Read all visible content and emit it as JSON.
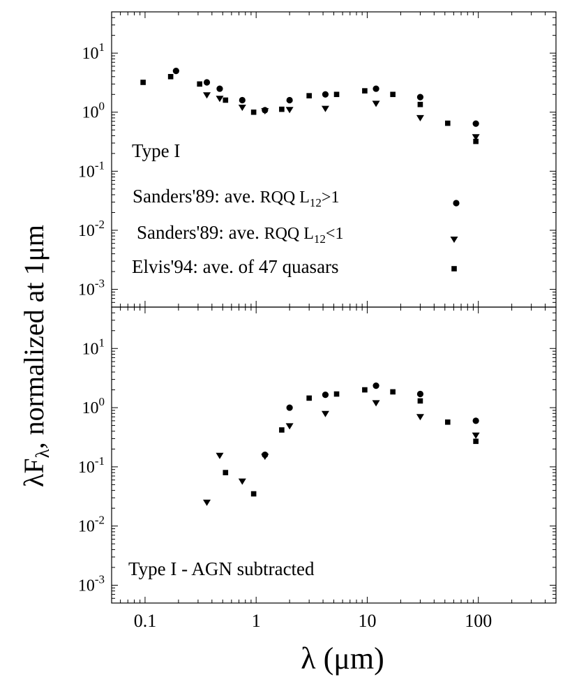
{
  "chart_data": {
    "type": "scatter",
    "xscale": "log",
    "yscale": "log",
    "xlim": [
      0.05,
      500
    ],
    "ylim": [
      0.0005,
      50
    ],
    "xlabel": {
      "main": "λ",
      "unit": "(μm)"
    },
    "ylabel": {
      "main": "λF",
      "sub": "λ",
      "rest": ", normalized at 1μm"
    },
    "xticks": [
      {
        "value": 0.1,
        "label": "0.1"
      },
      {
        "value": 1,
        "label": "1"
      },
      {
        "value": 10,
        "label": "10"
      },
      {
        "value": 100,
        "label": "100"
      }
    ],
    "yticks": [
      {
        "value": 10,
        "base": "10",
        "exp": "1"
      },
      {
        "value": 1,
        "base": "10",
        "exp": "0"
      },
      {
        "value": 0.1,
        "base": "10",
        "exp": "-1"
      },
      {
        "value": 0.01,
        "base": "10",
        "exp": "-2"
      },
      {
        "value": 0.001,
        "base": "10",
        "exp": "-3"
      }
    ],
    "legend": [
      {
        "marker": "circle",
        "prefix": "Sanders'89: ave. ",
        "mid": "RQQ L",
        "sub": "12",
        "suffix": ">1"
      },
      {
        "marker": "triangle",
        "prefix": "Sanders'89: ave. ",
        "mid": "RQQ L",
        "sub": "12",
        "suffix": "<1"
      },
      {
        "marker": "square",
        "prefix": "Elvis'94: ave. of 47 quasars",
        "mid": "",
        "sub": "",
        "suffix": ""
      }
    ],
    "panels": [
      {
        "label": "Type I",
        "series": [
          {
            "name": "Sanders'89 RQQ L12>1",
            "marker": "circle",
            "x": [
              0.19,
              0.36,
              0.47,
              0.75,
              1.2,
              2.0,
              4.2,
              12,
              30,
              95
            ],
            "y": [
              5.0,
              3.2,
              2.5,
              1.6,
              1.08,
              1.6,
              2.0,
              2.5,
              1.8,
              0.64
            ]
          },
          {
            "name": "Sanders'89 RQQ L12<1",
            "marker": "triangle",
            "x": [
              0.36,
              0.47,
              0.75,
              1.2,
              2.0,
              4.2,
              12,
              30,
              95
            ],
            "y": [
              1.95,
              1.7,
              1.2,
              1.05,
              1.1,
              1.15,
              1.4,
              0.8,
              0.38
            ]
          },
          {
            "name": "Elvis'94 ave. of 47 quasars",
            "marker": "square",
            "x": [
              0.096,
              0.17,
              0.31,
              0.53,
              0.95,
              1.7,
              3.0,
              5.3,
              9.5,
              17,
              30,
              53,
              95
            ],
            "y": [
              3.2,
              4.0,
              3.0,
              1.6,
              1.0,
              1.12,
              1.9,
              2.0,
              2.3,
              2.0,
              1.35,
              0.65,
              0.32
            ]
          }
        ]
      },
      {
        "label": "Type I - AGN subtracted",
        "series": [
          {
            "name": "Sanders'89 RQQ L12>1",
            "marker": "circle",
            "x": [
              1.2,
              2.0,
              4.2,
              12,
              30,
              95
            ],
            "y": [
              0.16,
              1.0,
              1.65,
              2.35,
              1.7,
              0.6
            ]
          },
          {
            "name": "Sanders'89 RQQ L12<1",
            "marker": "triangle",
            "x": [
              0.36,
              0.47,
              0.75,
              1.2,
              2.0,
              4.2,
              12,
              30,
              95
            ],
            "y": [
              0.025,
              0.155,
              0.057,
              0.15,
              0.49,
              0.79,
              1.2,
              0.7,
              0.34
            ]
          },
          {
            "name": "Elvis'94 ave. of 47 quasars",
            "marker": "square",
            "x": [
              0.53,
              0.95,
              1.7,
              3.0,
              5.3,
              9.5,
              17,
              30,
              53,
              95
            ],
            "y": [
              0.08,
              0.035,
              0.42,
              1.45,
              1.7,
              2.0,
              1.85,
              1.3,
              0.57,
              0.27
            ]
          }
        ]
      }
    ]
  }
}
